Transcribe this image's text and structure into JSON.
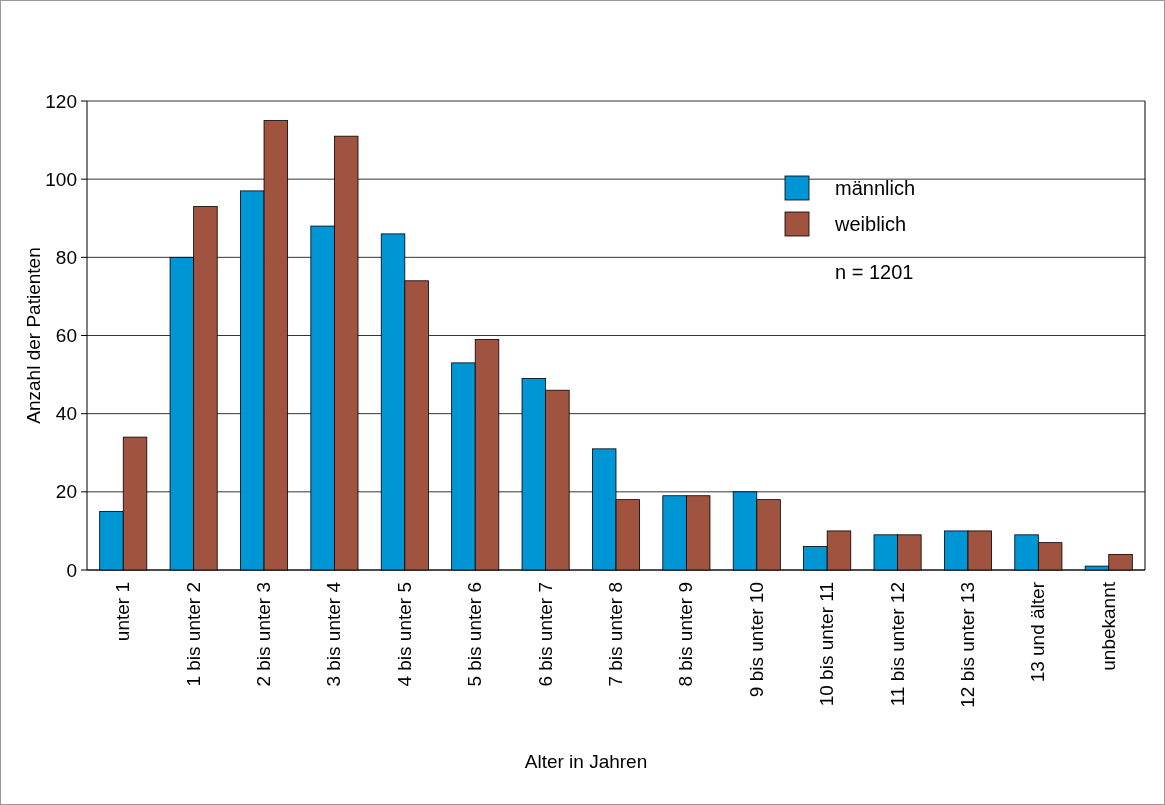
{
  "chart_data": {
    "type": "bar",
    "xlabel": "Alter in Jahren",
    "ylabel": "Anzahl der Patienten",
    "categories": [
      "unter 1",
      "1 bis unter 2",
      "2 bis unter 3",
      "3 bis unter 4",
      "4 bis unter 5",
      "5 bis unter 6",
      "6 bis unter 7",
      "7 bis unter 8",
      "8 bis unter 9",
      "9 bis unter 10",
      "10 bis unter 11",
      "11 bis unter 12",
      "12 bis unter 13",
      "13 und älter",
      "unbekannt"
    ],
    "series": [
      {
        "name": "männlich",
        "color": "#0096d6",
        "values": [
          15,
          80,
          97,
          88,
          86,
          53,
          49,
          31,
          19,
          20,
          6,
          9,
          10,
          9,
          1
        ]
      },
      {
        "name": "weiblich",
        "color": "#a0533f",
        "values": [
          34,
          93,
          115,
          111,
          74,
          59,
          46,
          18,
          19,
          18,
          10,
          9,
          10,
          7,
          4
        ]
      }
    ],
    "ylim": [
      0,
      120
    ],
    "yticks": [
      0,
      20,
      40,
      60,
      80,
      100,
      120
    ],
    "grid": "y",
    "legend": "top right",
    "annotations": [
      "n = 1201"
    ]
  }
}
